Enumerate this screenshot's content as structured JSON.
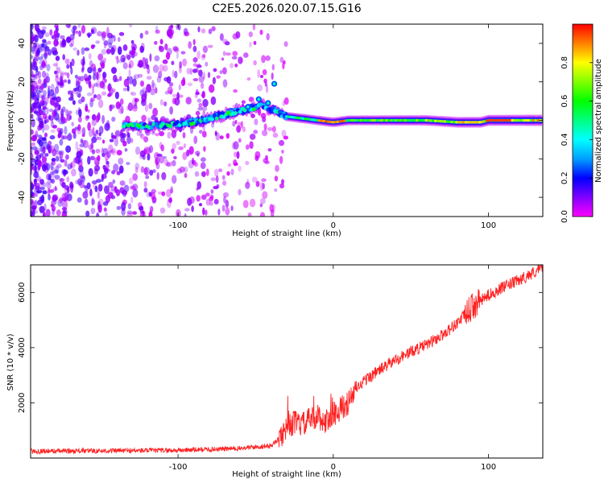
{
  "title": "C2E5.2026.020.07.15.G16",
  "chart_data": [
    {
      "type": "heatmap",
      "xlabel": "Height of straight line (km)",
      "ylabel": "Frequency (Hz)",
      "xlim": [
        -195,
        135
      ],
      "ylim": [
        -50,
        50
      ],
      "xticks": [
        -100,
        0,
        100
      ],
      "yticks": [
        -40,
        -20,
        0,
        20,
        40
      ],
      "colorbar": {
        "label": "Normalized spectral amplitude",
        "range": [
          0.0,
          1.0
        ],
        "ticks": [
          "0.0",
          "0.2",
          "0.4",
          "0.6",
          "0.8"
        ],
        "tick_values": [
          0.0,
          0.2,
          0.4,
          0.6,
          0.8
        ],
        "colors": [
          "#ff00ff",
          "#8000ff",
          "#0000ff",
          "#00a0ff",
          "#00ffff",
          "#00ff80",
          "#00ff00",
          "#80ff00",
          "#ffff00",
          "#ff8000",
          "#ff0000"
        ]
      },
      "ridge": {
        "x": [
          -135,
          -120,
          -100,
          -85,
          -75,
          -60,
          -45,
          -40,
          -35,
          -30,
          -20,
          -10,
          0,
          10,
          30,
          60,
          80,
          95,
          100,
          120,
          135
        ],
        "y": [
          -3,
          -3,
          -2,
          0,
          2,
          5,
          8,
          6,
          4,
          2,
          1,
          0,
          -1,
          0,
          0,
          0,
          -1,
          -1,
          0,
          0,
          0
        ],
        "peak_amplitude": 0.95
      }
    },
    {
      "type": "line",
      "xlabel": "Height of straight line (km)",
      "ylabel": "SNR (10 * v/v)",
      "xlim": [
        -195,
        135
      ],
      "ylim": [
        0,
        7000
      ],
      "xticks": [
        -100,
        0,
        100
      ],
      "yticks": [
        2000,
        4000,
        6000
      ],
      "line_color": "#ff2020",
      "x": [
        -195,
        -150,
        -100,
        -60,
        -40,
        -35,
        -30,
        -25,
        -20,
        -15,
        -10,
        -5,
        0,
        5,
        10,
        15,
        20,
        30,
        40,
        50,
        60,
        70,
        80,
        85,
        90,
        100,
        110,
        120,
        130,
        135
      ],
      "y": [
        250,
        260,
        280,
        350,
        450,
        700,
        1100,
        1300,
        1200,
        1400,
        1500,
        1300,
        1600,
        1800,
        2000,
        2500,
        2800,
        3200,
        3550,
        3850,
        4100,
        4450,
        4900,
        5200,
        5500,
        5900,
        6200,
        6450,
        6750,
        6900
      ]
    }
  ]
}
